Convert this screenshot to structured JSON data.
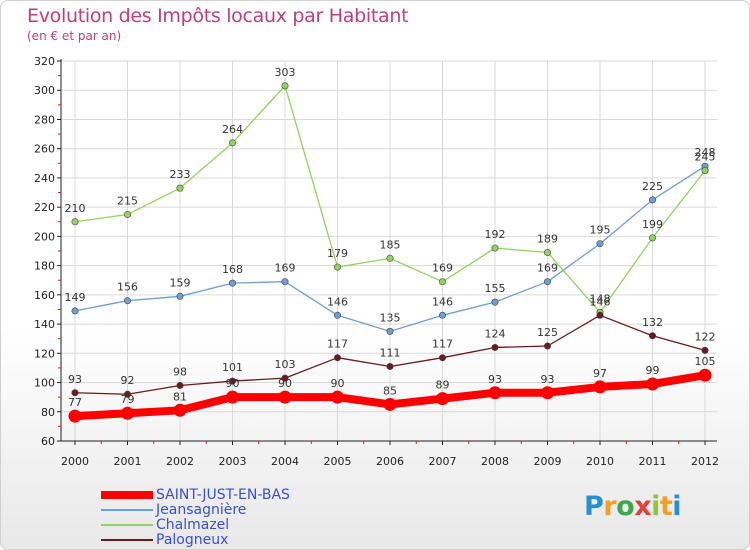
{
  "title": "Evolution des Impôts locaux par Habitant",
  "subtitle": "(en € et par an)",
  "logo": {
    "letters": [
      "P",
      "r",
      "o",
      "x",
      "i",
      "t",
      "i"
    ],
    "colors": [
      "#2a8fd0",
      "#f2a11e",
      "#3aa84b",
      "#e0413a",
      "#8fc43c",
      "#f2a11e",
      "#2a8fd0"
    ]
  },
  "chart_data": {
    "type": "line",
    "title": "Evolution des Impôts locaux par Habitant",
    "subtitle": "(en € et par an)",
    "x": [
      "2000",
      "2001",
      "2002",
      "2003",
      "2004",
      "2005",
      "2006",
      "2007",
      "2008",
      "2009",
      "2010",
      "2011",
      "2012"
    ],
    "ylim": [
      60,
      320
    ],
    "yticks": [
      60,
      80,
      100,
      120,
      140,
      160,
      180,
      200,
      220,
      240,
      260,
      280,
      300,
      320
    ],
    "grid": true,
    "legend_position": "bottom-left",
    "series": [
      {
        "name": "SAINT-JUST-EN-BAS",
        "color": "#ff0000",
        "values": [
          77,
          79,
          81,
          90,
          90,
          90,
          85,
          89,
          93,
          93,
          97,
          99,
          105
        ]
      },
      {
        "name": "Jeansagnière",
        "color": "#6c9fd4",
        "values": [
          149,
          156,
          159,
          168,
          169,
          146,
          135,
          146,
          155,
          169,
          195,
          225,
          248
        ]
      },
      {
        "name": "Chalmazel",
        "color": "#8fd45e",
        "values": [
          210,
          215,
          233,
          264,
          303,
          179,
          185,
          169,
          192,
          189,
          148,
          199,
          245
        ]
      },
      {
        "name": "Palogneux",
        "color": "#6b1a1f",
        "values": [
          93,
          92,
          98,
          101,
          103,
          117,
          111,
          117,
          124,
          125,
          146,
          132,
          122
        ]
      }
    ]
  }
}
